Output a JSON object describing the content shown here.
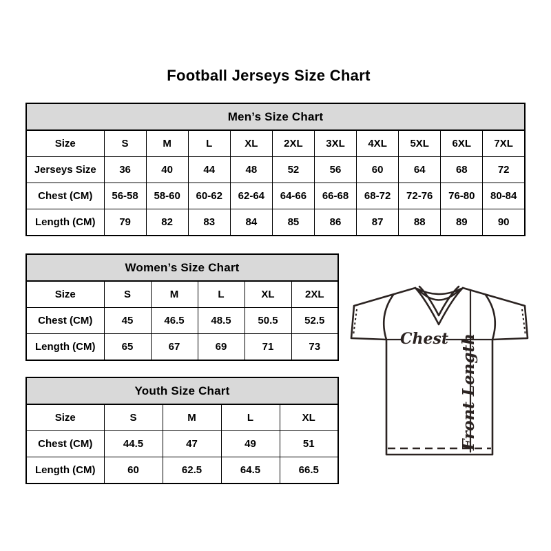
{
  "page": {
    "title": "Football Jerseys Size Chart"
  },
  "tables": [
    {
      "id": "mens",
      "title": "Men’s Size Chart",
      "rows": [
        {
          "label": "Size",
          "values": [
            "S",
            "M",
            "L",
            "XL",
            "2XL",
            "3XL",
            "4XL",
            "5XL",
            "6XL",
            "7XL"
          ]
        },
        {
          "label": "Jerseys Size",
          "values": [
            "36",
            "40",
            "44",
            "48",
            "52",
            "56",
            "60",
            "64",
            "68",
            "72"
          ]
        },
        {
          "label": "Chest (CM)",
          "values": [
            "56-58",
            "58-60",
            "60-62",
            "62-64",
            "64-66",
            "66-68",
            "68-72",
            "72-76",
            "76-80",
            "80-84"
          ]
        },
        {
          "label": "Length (CM)",
          "values": [
            "79",
            "82",
            "83",
            "84",
            "85",
            "86",
            "87",
            "88",
            "89",
            "90"
          ]
        }
      ]
    },
    {
      "id": "womens",
      "title": "Women’s Size Chart",
      "rows": [
        {
          "label": "Size",
          "values": [
            "S",
            "M",
            "L",
            "XL",
            "2XL"
          ]
        },
        {
          "label": "Chest (CM)",
          "values": [
            "45",
            "46.5",
            "48.5",
            "50.5",
            "52.5"
          ]
        },
        {
          "label": "Length (CM)",
          "values": [
            "65",
            "67",
            "69",
            "71",
            "73"
          ]
        }
      ]
    },
    {
      "id": "youth",
      "title": "Youth Size Chart",
      "rows": [
        {
          "label": "Size",
          "values": [
            "S",
            "M",
            "L",
            "XL"
          ]
        },
        {
          "label": "Chest (CM)",
          "values": [
            "44.5",
            "47",
            "49",
            "51"
          ]
        },
        {
          "label": "Length (CM)",
          "values": [
            "60",
            "62.5",
            "64.5",
            "66.5"
          ]
        }
      ]
    }
  ],
  "diagram": {
    "chest_label": "Chest",
    "front_length_label": "Front Length"
  },
  "colors": {
    "header_bg": "#d9d9d9",
    "table_border": "#000000",
    "diagram_stroke": "#2b2321"
  }
}
